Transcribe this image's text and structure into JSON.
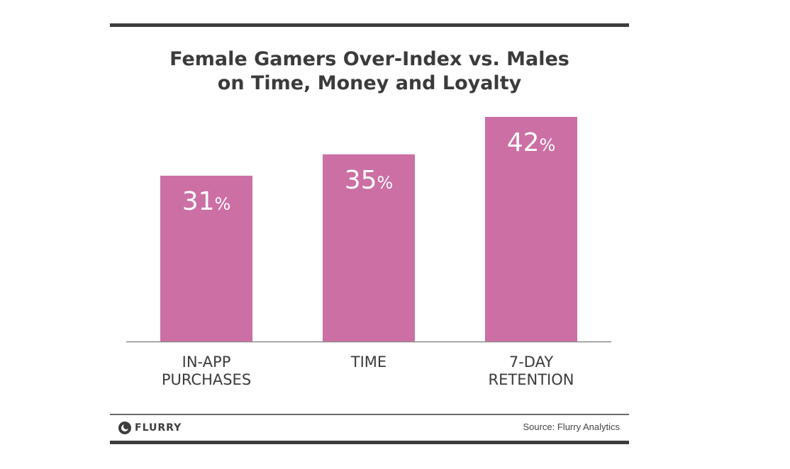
{
  "chart_data": {
    "type": "bar",
    "title": "Female Gamers Over-Index vs. Males\non Time, Money and Loyalty",
    "categories": [
      "IN-APP\nPURCHASES",
      "TIME",
      "7-DAY\nRETENTION"
    ],
    "values": [
      31,
      35,
      42
    ],
    "value_labels": [
      "31",
      "35",
      "42"
    ],
    "value_unit": "%",
    "ylim": [
      0,
      42
    ],
    "grid": false,
    "legend": "none",
    "bar_color": "#cc6fa4"
  },
  "footer": {
    "logo_text": "FLURRY",
    "source": "Source: Flurry Analytics"
  },
  "colors": {
    "rule": "#3d3d3d",
    "text": "#3b3b3b",
    "bar": "#cc6fa4",
    "label_on_bar": "#ffffff"
  }
}
